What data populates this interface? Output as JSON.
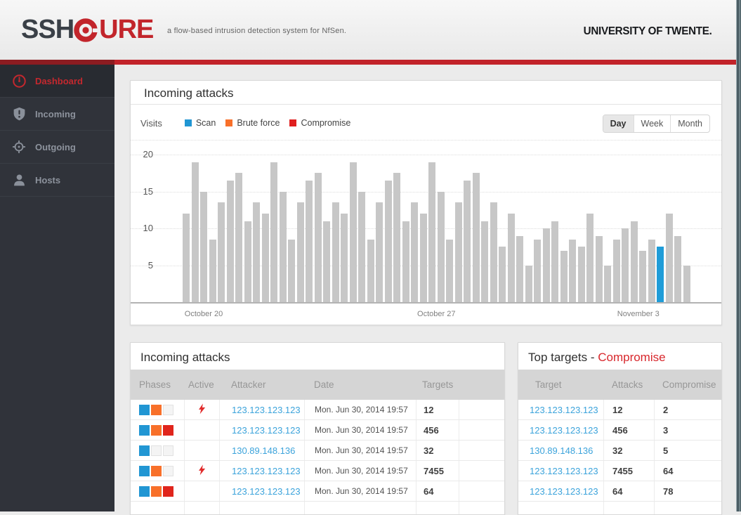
{
  "header": {
    "logo_part1": "SSH",
    "logo_part2": "URE",
    "tagline": "a flow-based  intrusion detection system for NfSen.",
    "university": "UNIVERSITY OF TWENTE."
  },
  "sidebar": {
    "items": [
      {
        "label": "Dashboard",
        "icon": "gauge-icon",
        "active": true
      },
      {
        "label": "Incoming",
        "icon": "shield-exclamation-icon",
        "active": false
      },
      {
        "label": "Outgoing",
        "icon": "crosshair-icon",
        "active": false
      },
      {
        "label": "Hosts",
        "icon": "person-icon",
        "active": false
      }
    ]
  },
  "chart_panel": {
    "title": "Incoming attacks",
    "visits_label": "Visits",
    "legend": [
      {
        "label": "Scan",
        "color": "#2196d3"
      },
      {
        "label": "Brute force",
        "color": "#f8702a"
      },
      {
        "label": "Compromise",
        "color": "#e01f1f"
      }
    ],
    "range_buttons": [
      {
        "label": "Day",
        "selected": true
      },
      {
        "label": "Week",
        "selected": false
      },
      {
        "label": "Month",
        "selected": false
      }
    ]
  },
  "chart_data": {
    "type": "bar",
    "title": "Incoming attacks",
    "series_label": "Visits",
    "ylabel": "",
    "xlabel": "",
    "ylim": [
      0,
      22
    ],
    "y_ticks": [
      5,
      10,
      15,
      20
    ],
    "grid": "dashed-horizontal",
    "values": [
      12,
      19,
      15,
      8.5,
      13.5,
      16.5,
      17.5,
      11,
      13.5,
      12,
      19,
      15,
      8.5,
      13.5,
      16.5,
      17.5,
      11,
      13.5,
      12,
      19,
      15,
      8.5,
      13.5,
      16.5,
      17.5,
      11,
      13.5,
      12,
      19,
      15,
      8.5,
      13.5,
      16.5,
      17.5,
      11,
      13.5,
      7.5,
      12,
      9,
      5,
      8.5,
      10,
      11,
      7,
      8.5,
      7.5,
      12,
      9,
      5,
      8.5,
      10,
      11,
      7,
      8.5,
      7.5,
      12,
      9,
      5
    ],
    "highlight_index": 54,
    "bar_color": "#c7c7c7",
    "highlight_color": "#1f9cd8",
    "x_labels": [
      {
        "label": "October 20",
        "at_bar": 2
      },
      {
        "label": "October 27",
        "at_bar": 28.5
      },
      {
        "label": "November 3",
        "at_bar": 51.5
      }
    ]
  },
  "attacks_table": {
    "title": "Incoming attacks",
    "columns": [
      "Phases",
      "Active",
      "Attacker",
      "Date",
      "Targets"
    ],
    "phase_colors": {
      "scan": "#2196d3",
      "bruteforce": "#f8702a",
      "compromise": "#e0251c"
    },
    "rows": [
      {
        "phases": [
          "scan",
          "bruteforce",
          "none"
        ],
        "active": true,
        "attacker": "123.123.123.123",
        "date": "Mon. Jun 30, 2014 19:57",
        "targets": "12"
      },
      {
        "phases": [
          "scan",
          "bruteforce",
          "compromise"
        ],
        "active": false,
        "attacker": "123.123.123.123",
        "date": "Mon. Jun 30, 2014 19:57",
        "targets": "456"
      },
      {
        "phases": [
          "scan",
          "none",
          "none"
        ],
        "active": false,
        "attacker": "130.89.148.136",
        "date": "Mon. Jun 30, 2014 19:57",
        "targets": "32"
      },
      {
        "phases": [
          "scan",
          "bruteforce",
          "none"
        ],
        "active": true,
        "attacker": "123.123.123.123",
        "date": "Mon. Jun 30, 2014 19:57",
        "targets": "7455"
      },
      {
        "phases": [
          "scan",
          "bruteforce",
          "compromise"
        ],
        "active": false,
        "attacker": "123.123.123.123",
        "date": "Mon. Jun 30, 2014 19:57",
        "targets": "64"
      }
    ]
  },
  "targets_table": {
    "title_prefix": "Top targets - ",
    "title_highlight": "Compromise",
    "columns": [
      "Target",
      "Attacks",
      "Compromise"
    ],
    "rows": [
      {
        "target": "123.123.123.123",
        "attacks": "12",
        "compromise": "2"
      },
      {
        "target": "123.123.123.123",
        "attacks": "456",
        "compromise": "3"
      },
      {
        "target": "130.89.148.136",
        "attacks": "32",
        "compromise": "5"
      },
      {
        "target": "123.123.123.123",
        "attacks": "7455",
        "compromise": "64"
      },
      {
        "target": "123.123.123.123",
        "attacks": "64",
        "compromise": "78"
      }
    ]
  }
}
